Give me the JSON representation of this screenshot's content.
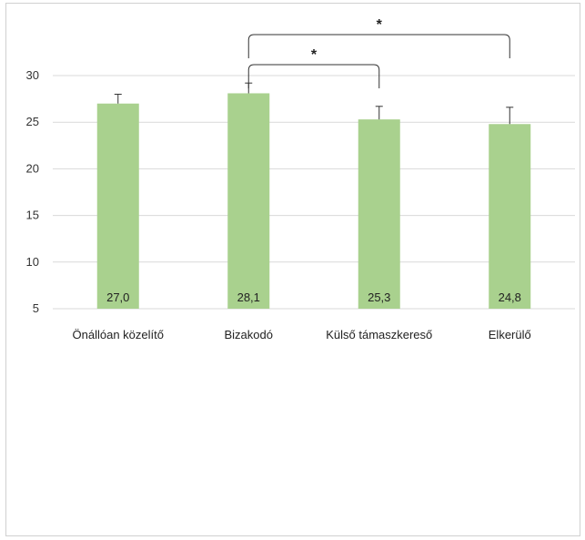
{
  "chart_data": {
    "type": "bar",
    "categories": [
      "Önállóan közelítő",
      "Bizakodó",
      "Külső támaszkereső",
      "Elkerülő"
    ],
    "values": [
      27.0,
      28.1,
      25.3,
      24.8
    ],
    "data_labels": [
      "27,0",
      "28,1",
      "25,3",
      "24,8"
    ],
    "error_upper": [
      28.0,
      29.2,
      26.7,
      26.6
    ],
    "ylim": [
      5,
      30
    ],
    "yticks": [
      5,
      10,
      15,
      20,
      25,
      30
    ],
    "ytick_labels": [
      "5",
      "10",
      "15",
      "20",
      "25",
      "30"
    ],
    "grid": true,
    "bar_color": "#a9d18e",
    "significance": [
      {
        "from": 1,
        "to": 2,
        "label": "*"
      },
      {
        "from": 1,
        "to": 3,
        "label": "*"
      }
    ]
  }
}
